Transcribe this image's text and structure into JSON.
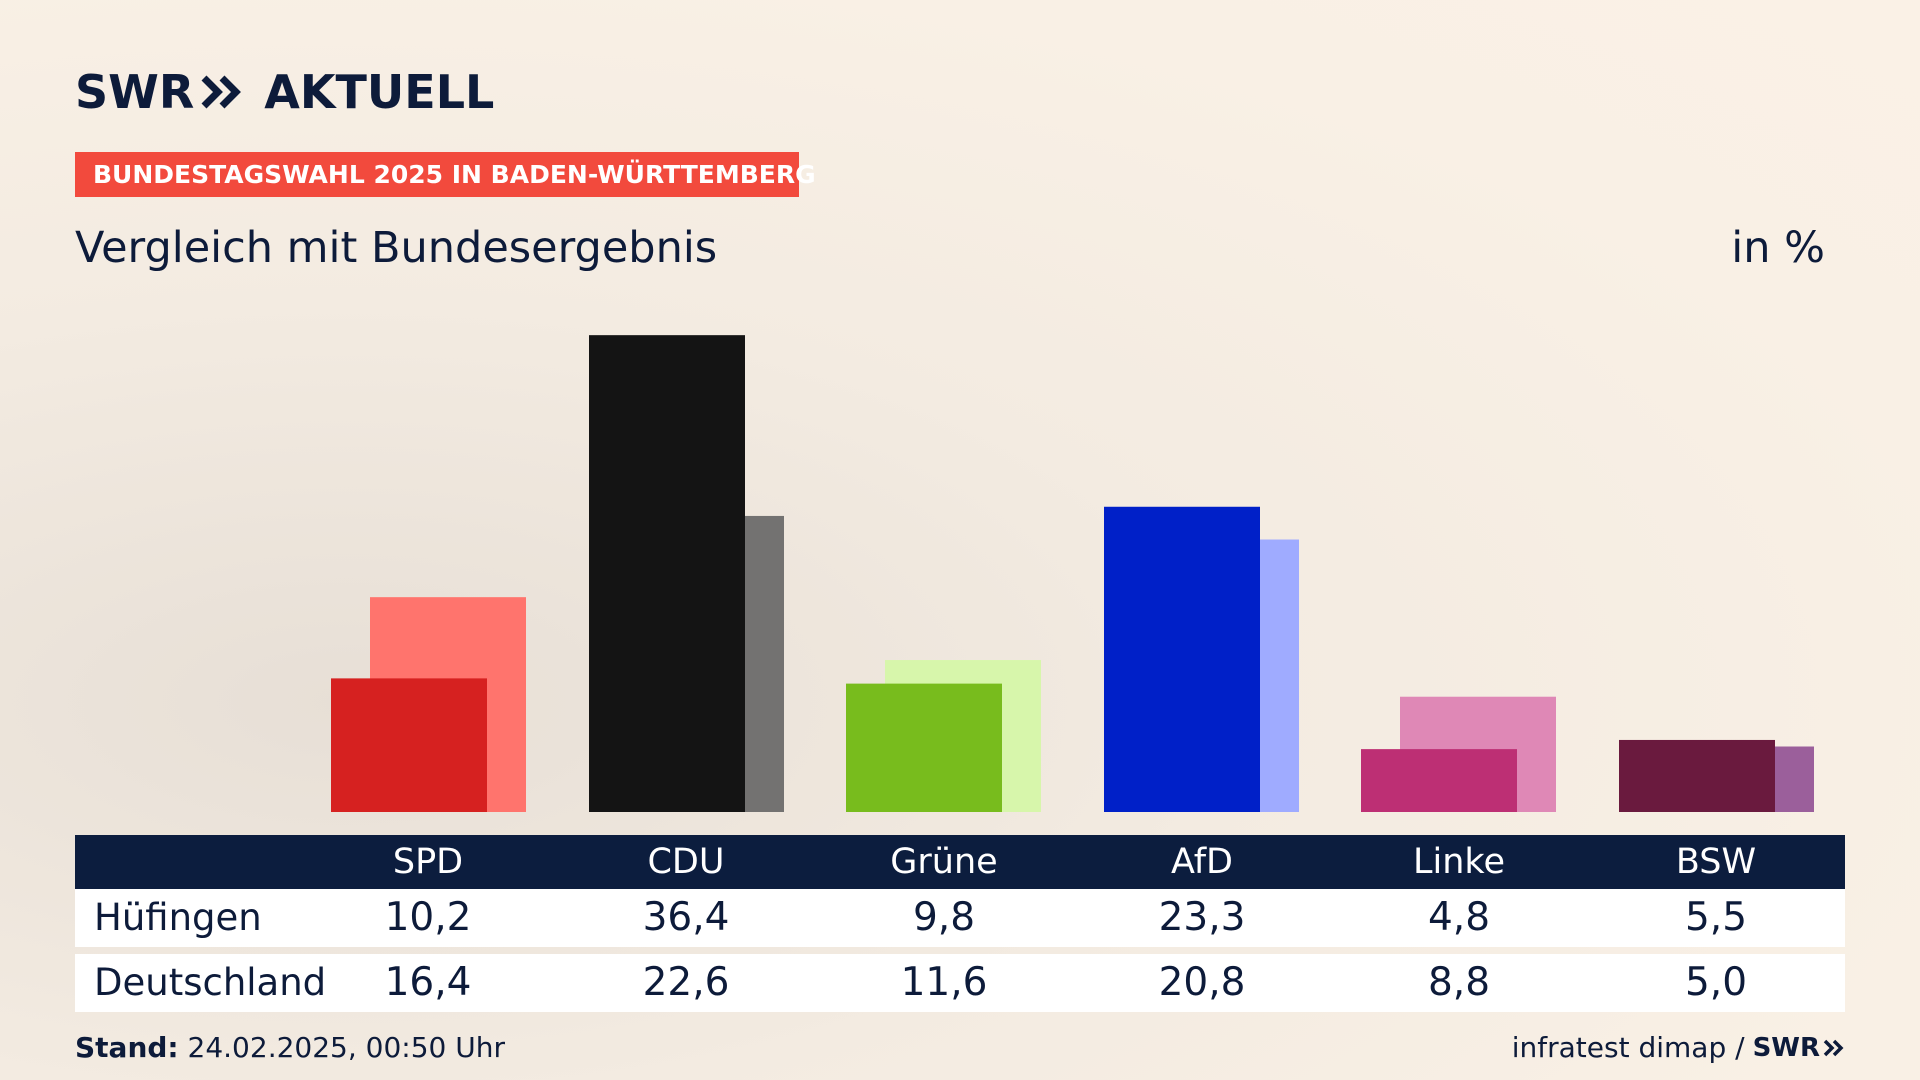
{
  "header": {
    "logo_text_left": "SWR",
    "logo_text_right": "AKTUELL",
    "banner": "BUNDESTAGSWAHL 2025 IN BADEN-WÜRTTEMBERG",
    "subtitle": "Vergleich mit Bundesergebnis",
    "unit": "in %"
  },
  "chart_data": {
    "type": "bar",
    "categories": [
      "SPD",
      "CDU",
      "Grüne",
      "AfD",
      "Linke",
      "BSW"
    ],
    "series": [
      {
        "name": "Hüfingen",
        "values": [
          10.2,
          36.4,
          9.8,
          23.3,
          4.8,
          5.5
        ]
      },
      {
        "name": "Deutschland",
        "values": [
          16.4,
          22.6,
          11.6,
          20.8,
          8.8,
          5.0
        ]
      }
    ],
    "colors": {
      "primary": [
        "#d62120",
        "#141414",
        "#78bc1d",
        "#0020c8",
        "#bd2f74",
        "#6a1a3e"
      ],
      "secondary": [
        "#ff746d",
        "#737271",
        "#d7f6ab",
        "#9fabff",
        "#df88b6",
        "#9b5f9b"
      ]
    },
    "ylim": [
      0,
      38
    ],
    "grid": false,
    "legend": "table-below"
  },
  "table": {
    "rows": [
      {
        "label": "Hüfingen",
        "values": [
          "10,2",
          "36,4",
          "9,8",
          "23,3",
          "4,8",
          "5,5"
        ]
      },
      {
        "label": "Deutschland",
        "values": [
          "16,4",
          "22,6",
          "11,6",
          "20,8",
          "8,8",
          "5,0"
        ]
      }
    ]
  },
  "footer": {
    "stand_label": "Stand:",
    "stand_value": "24.02.2025, 00:50 Uhr",
    "source": "infratest dimap /",
    "logo_text": "SWR"
  }
}
